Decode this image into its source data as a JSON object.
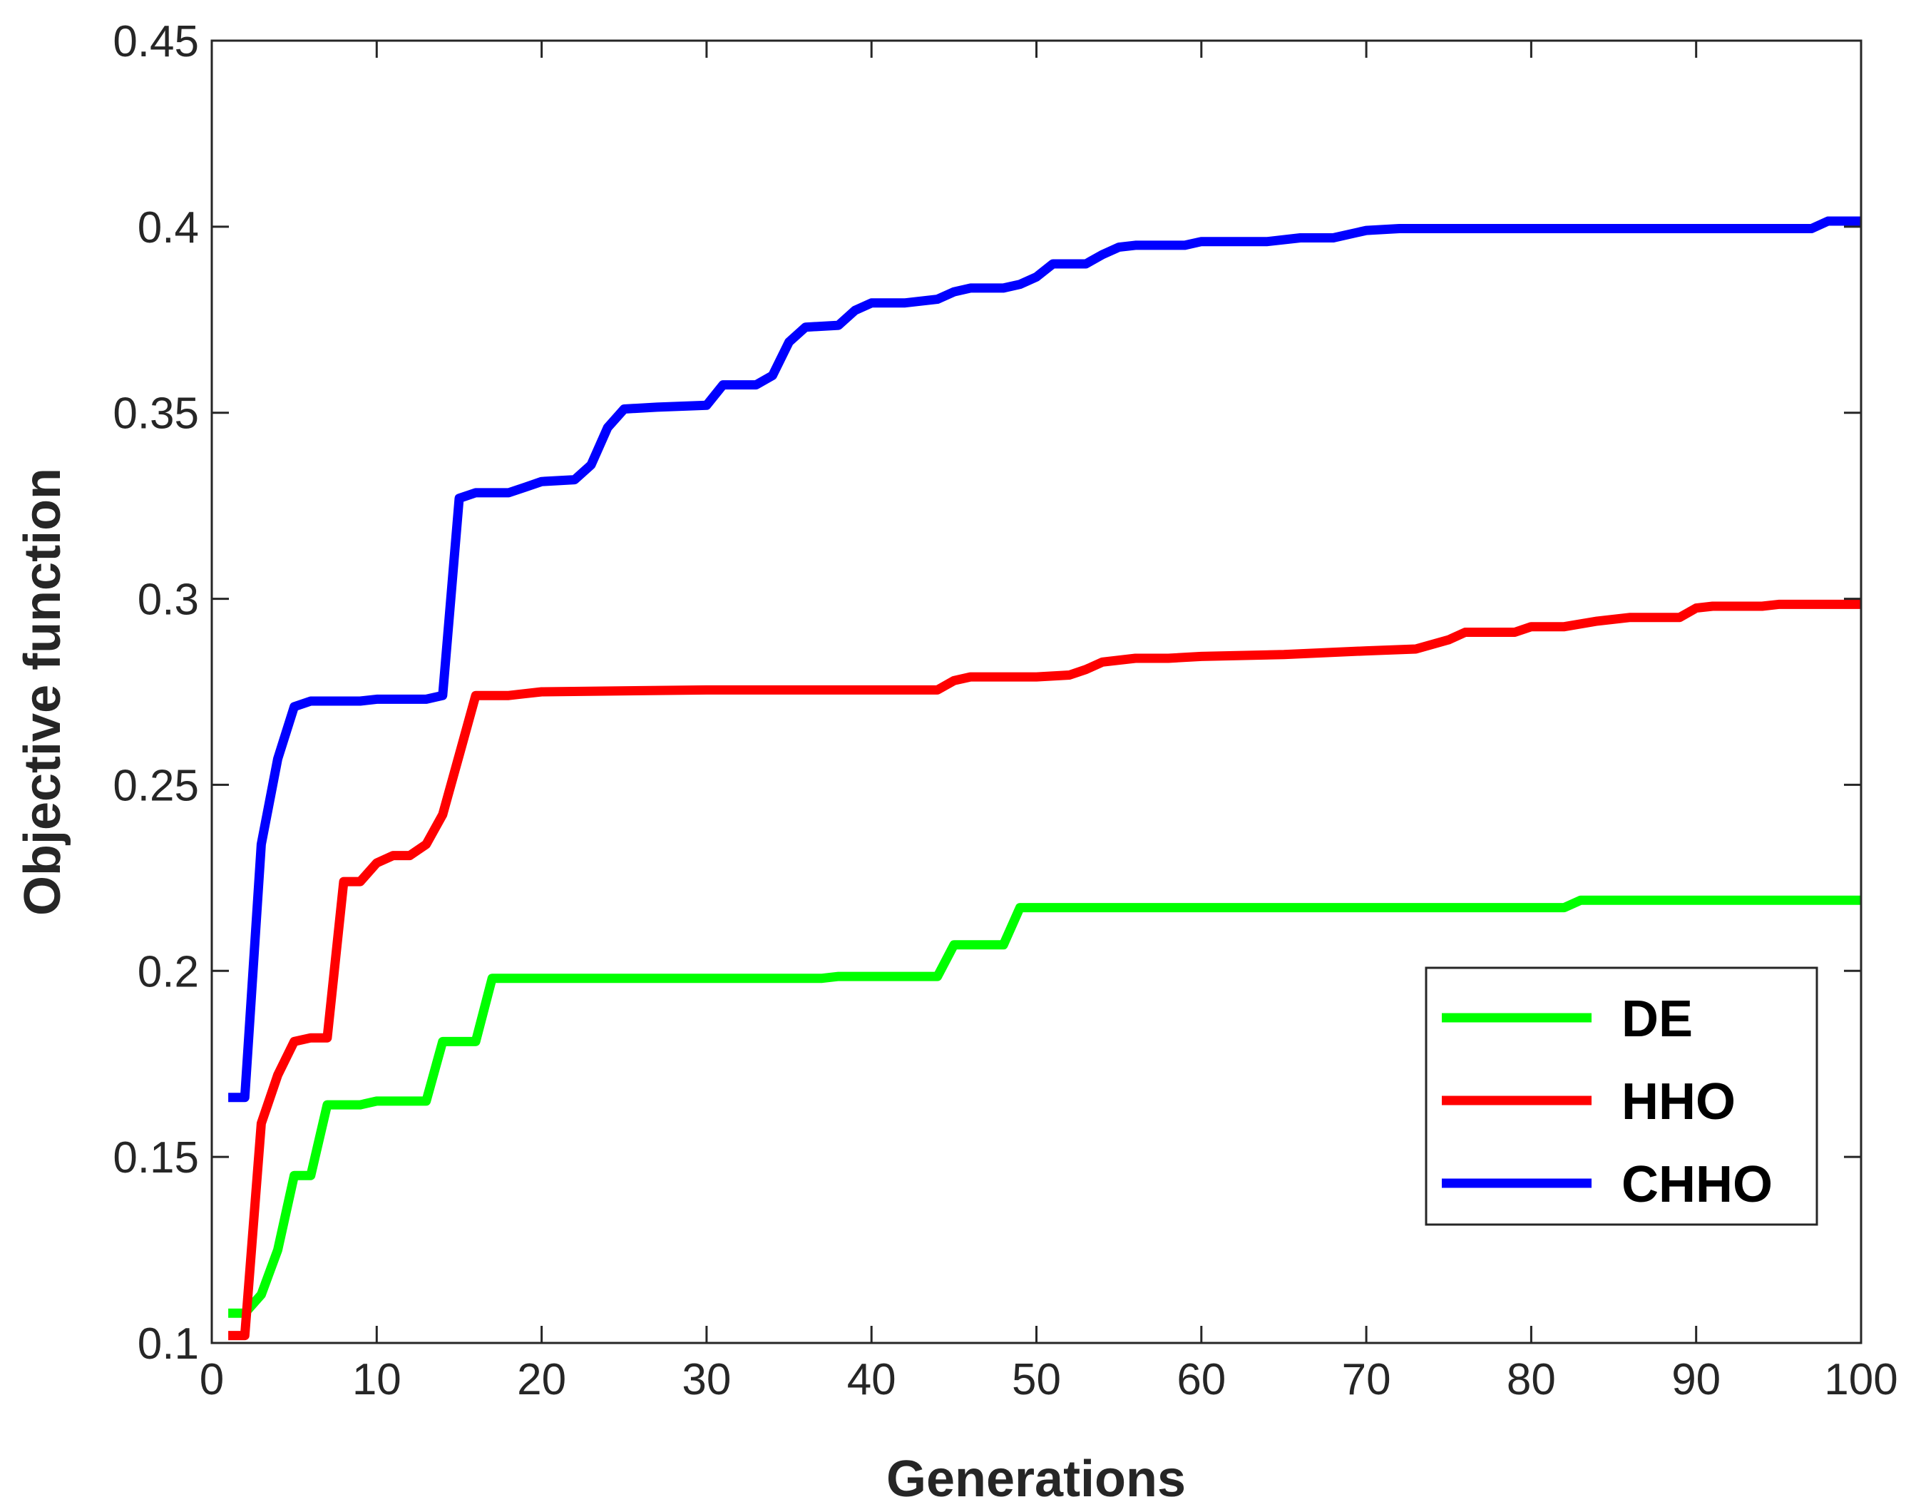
{
  "chart_data": {
    "type": "line",
    "title": "",
    "xlabel": "Generations",
    "ylabel": "Objective function",
    "xlim": [
      0,
      100
    ],
    "ylim": [
      0.1,
      0.45
    ],
    "xticks": [
      0,
      10,
      20,
      30,
      40,
      50,
      60,
      70,
      80,
      90,
      100
    ],
    "yticks": [
      0.1,
      0.15,
      0.2,
      0.25,
      0.3,
      0.35,
      0.4,
      0.45
    ],
    "xtick_labels": [
      "0",
      "10",
      "20",
      "30",
      "40",
      "50",
      "60",
      "70",
      "80",
      "90",
      "100"
    ],
    "ytick_labels": [
      "0.1",
      "0.15",
      "0.2",
      "0.25",
      "0.3",
      "0.35",
      "0.4",
      "0.45"
    ],
    "grid": false,
    "legend_position": "lower-right",
    "series": [
      {
        "name": "DE",
        "color": "#00ff00",
        "points": [
          [
            1,
            0.108
          ],
          [
            2,
            0.108
          ],
          [
            3,
            0.113
          ],
          [
            4,
            0.125
          ],
          [
            5,
            0.145
          ],
          [
            6,
            0.145
          ],
          [
            7,
            0.164
          ],
          [
            8,
            0.164
          ],
          [
            9,
            0.164
          ],
          [
            10,
            0.165
          ],
          [
            11,
            0.165
          ],
          [
            12,
            0.165
          ],
          [
            13,
            0.165
          ],
          [
            14,
            0.181
          ],
          [
            15,
            0.181
          ],
          [
            16,
            0.181
          ],
          [
            17,
            0.198
          ],
          [
            20,
            0.198
          ],
          [
            30,
            0.198
          ],
          [
            37,
            0.198
          ],
          [
            38,
            0.1985
          ],
          [
            44,
            0.1985
          ],
          [
            45,
            0.207
          ],
          [
            46,
            0.207
          ],
          [
            48,
            0.207
          ],
          [
            49,
            0.217
          ],
          [
            50,
            0.217
          ],
          [
            60,
            0.217
          ],
          [
            70,
            0.217
          ],
          [
            82,
            0.217
          ],
          [
            83,
            0.219
          ],
          [
            90,
            0.219
          ],
          [
            100,
            0.219
          ]
        ]
      },
      {
        "name": "HHO",
        "color": "#ff0000",
        "points": [
          [
            1,
            0.102
          ],
          [
            2,
            0.102
          ],
          [
            3,
            0.159
          ],
          [
            4,
            0.172
          ],
          [
            5,
            0.181
          ],
          [
            6,
            0.182
          ],
          [
            7,
            0.182
          ],
          [
            8,
            0.224
          ],
          [
            9,
            0.224
          ],
          [
            10,
            0.229
          ],
          [
            11,
            0.231
          ],
          [
            12,
            0.231
          ],
          [
            13,
            0.234
          ],
          [
            14,
            0.242
          ],
          [
            15,
            0.258
          ],
          [
            16,
            0.274
          ],
          [
            17,
            0.274
          ],
          [
            18,
            0.274
          ],
          [
            19,
            0.2745
          ],
          [
            20,
            0.275
          ],
          [
            30,
            0.2755
          ],
          [
            40,
            0.2755
          ],
          [
            44,
            0.2755
          ],
          [
            45,
            0.278
          ],
          [
            46,
            0.279
          ],
          [
            50,
            0.279
          ],
          [
            52,
            0.2795
          ],
          [
            53,
            0.281
          ],
          [
            54,
            0.283
          ],
          [
            56,
            0.284
          ],
          [
            58,
            0.284
          ],
          [
            60,
            0.2845
          ],
          [
            65,
            0.285
          ],
          [
            70,
            0.286
          ],
          [
            73,
            0.2865
          ],
          [
            75,
            0.289
          ],
          [
            76,
            0.291
          ],
          [
            79,
            0.291
          ],
          [
            80,
            0.2925
          ],
          [
            82,
            0.2925
          ],
          [
            84,
            0.294
          ],
          [
            86,
            0.295
          ],
          [
            89,
            0.295
          ],
          [
            90,
            0.2975
          ],
          [
            91,
            0.298
          ],
          [
            94,
            0.298
          ],
          [
            95,
            0.2985
          ],
          [
            100,
            0.2985
          ]
        ]
      },
      {
        "name": "CHHO",
        "color": "#0000ff",
        "points": [
          [
            1,
            0.166
          ],
          [
            2,
            0.166
          ],
          [
            3,
            0.234
          ],
          [
            4,
            0.257
          ],
          [
            5,
            0.271
          ],
          [
            6,
            0.2725
          ],
          [
            7,
            0.2725
          ],
          [
            9,
            0.2725
          ],
          [
            10,
            0.273
          ],
          [
            12,
            0.273
          ],
          [
            13,
            0.273
          ],
          [
            14,
            0.274
          ],
          [
            15,
            0.327
          ],
          [
            16,
            0.3285
          ],
          [
            18,
            0.3285
          ],
          [
            19,
            0.33
          ],
          [
            20,
            0.3315
          ],
          [
            22,
            0.332
          ],
          [
            23,
            0.336
          ],
          [
            24,
            0.346
          ],
          [
            25,
            0.351
          ],
          [
            27,
            0.3515
          ],
          [
            30,
            0.352
          ],
          [
            31,
            0.3575
          ],
          [
            33,
            0.3575
          ],
          [
            34,
            0.36
          ],
          [
            35,
            0.369
          ],
          [
            36,
            0.373
          ],
          [
            38,
            0.3735
          ],
          [
            39,
            0.3775
          ],
          [
            40,
            0.3795
          ],
          [
            42,
            0.3795
          ],
          [
            44,
            0.3805
          ],
          [
            45,
            0.3825
          ],
          [
            46,
            0.3835
          ],
          [
            48,
            0.3835
          ],
          [
            49,
            0.3845
          ],
          [
            50,
            0.3865
          ],
          [
            51,
            0.39
          ],
          [
            53,
            0.39
          ],
          [
            54,
            0.3925
          ],
          [
            55,
            0.3945
          ],
          [
            56,
            0.395
          ],
          [
            59,
            0.395
          ],
          [
            60,
            0.396
          ],
          [
            64,
            0.396
          ],
          [
            66,
            0.397
          ],
          [
            68,
            0.397
          ],
          [
            70,
            0.399
          ],
          [
            72,
            0.3995
          ],
          [
            80,
            0.3995
          ],
          [
            90,
            0.3995
          ],
          [
            96,
            0.3995
          ],
          [
            97,
            0.3995
          ],
          [
            98,
            0.4015
          ],
          [
            100,
            0.4015
          ]
        ]
      }
    ]
  }
}
